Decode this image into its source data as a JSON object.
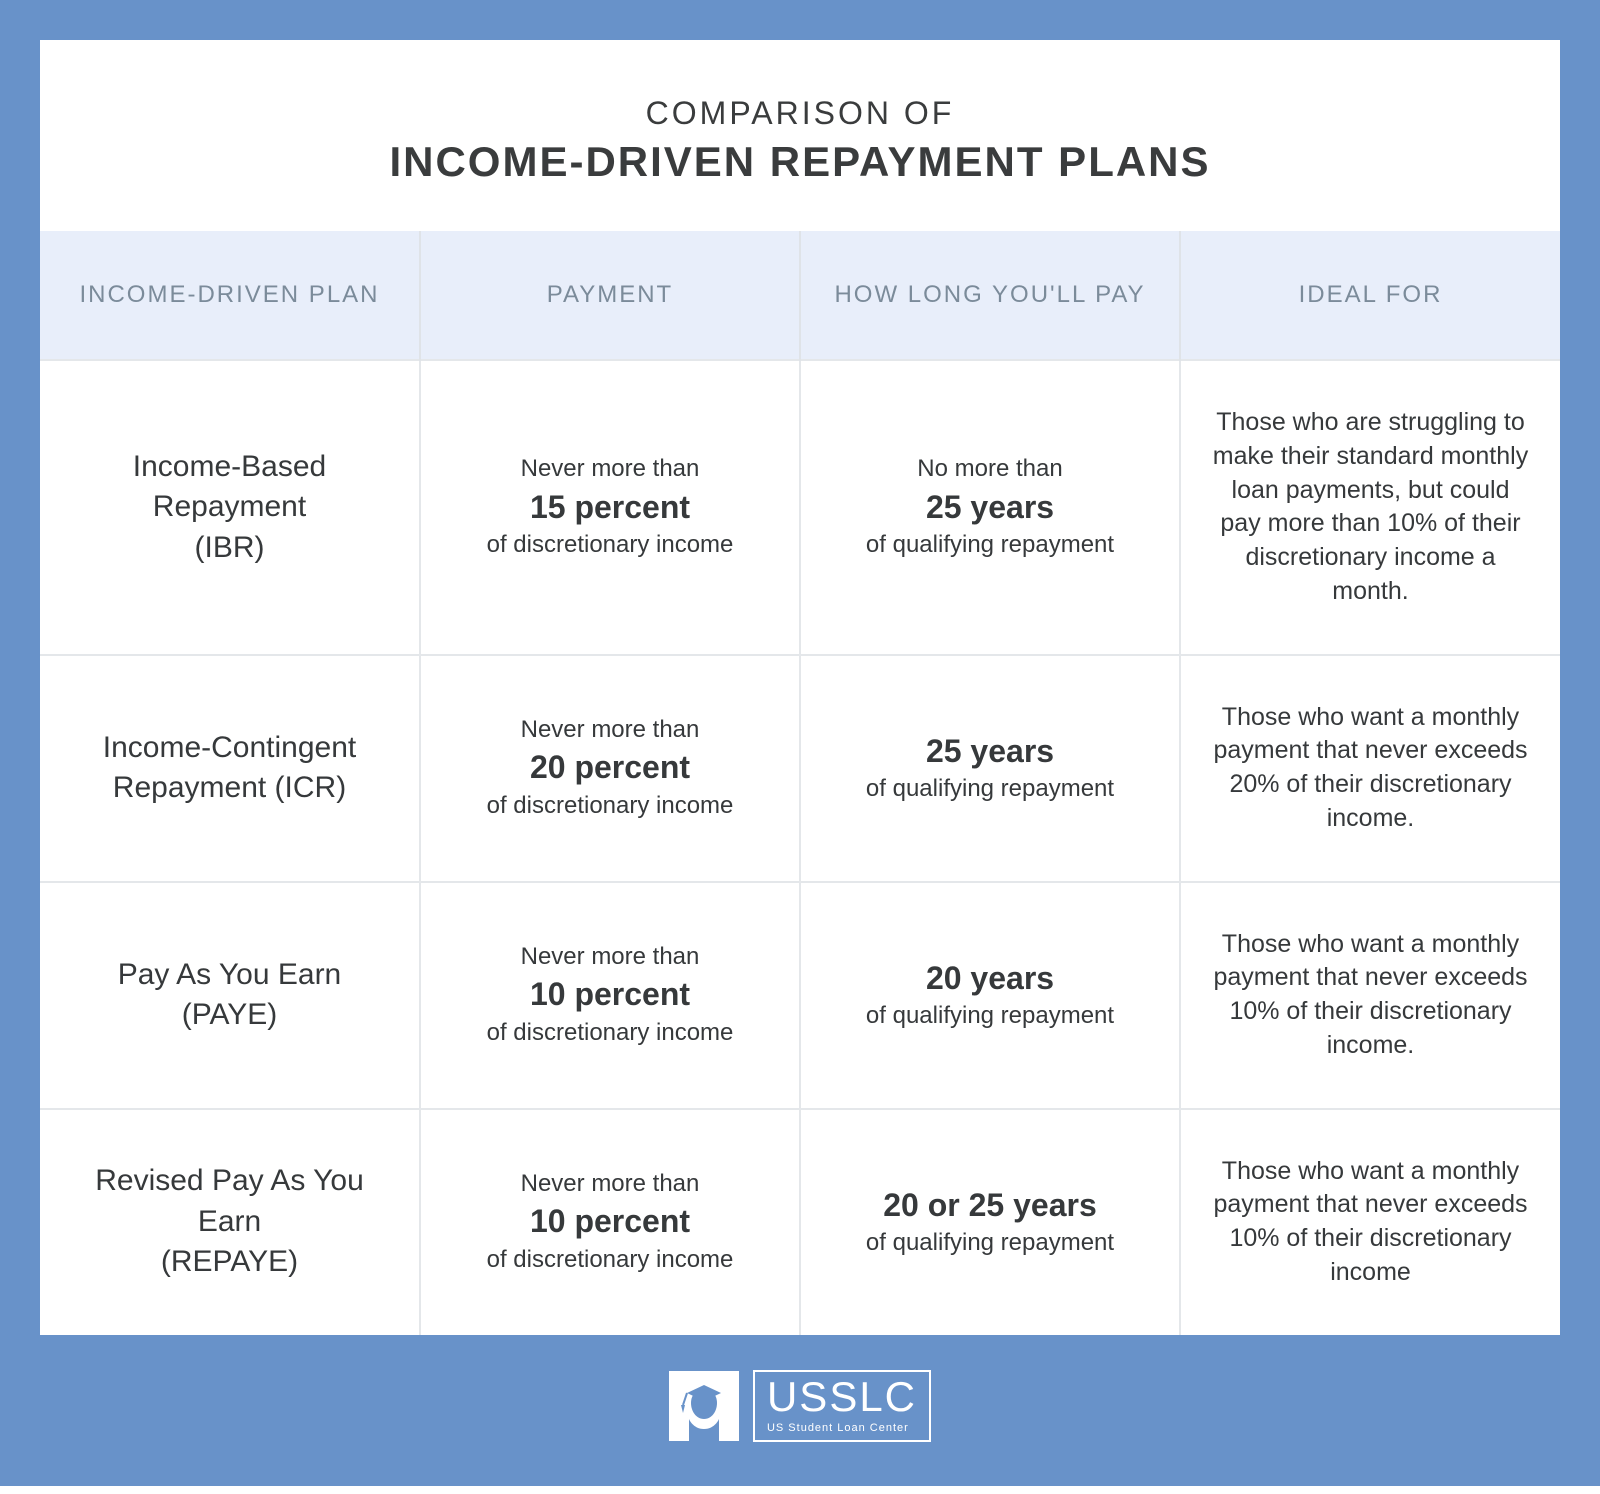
{
  "colors": {
    "outer_bg": "#6892c9",
    "card_bg": "#ffffff",
    "header_row_bg": "#e8eefa",
    "header_text": "#7b8b9a",
    "cell_text": "#36393b",
    "border": "#e4e7ea"
  },
  "typography": {
    "title_small_fs": 32,
    "title_big_fs": 42,
    "header_fs": 24,
    "plan_name_fs": 30,
    "bold_fs": 32,
    "body_fs": 25
  },
  "title": {
    "pre": "COMPARISON OF",
    "main": "INCOME-DRIVEN REPAYMENT PLANS"
  },
  "columns": [
    "INCOME-DRIVEN PLAN",
    "PAYMENT",
    "HOW LONG YOU'LL PAY",
    "IDEAL FOR"
  ],
  "rows": [
    {
      "plan_line1": "Income-Based Repayment",
      "plan_line2": "(IBR)",
      "pay_pre": "Never more than",
      "pay_bold": "15 percent",
      "pay_post": "of discretionary income",
      "dur_pre": "No more than",
      "dur_bold": "25 years",
      "dur_post": "of qualifying repayment",
      "ideal": "Those who are struggling to make their standard monthly loan payments, but could pay more than 10% of their discretionary income a month."
    },
    {
      "plan_line1": "Income-Contingent",
      "plan_line2": "Repayment  (ICR)",
      "pay_pre": "Never more than",
      "pay_bold": "20 percent",
      "pay_post": "of discretionary income",
      "dur_pre": "",
      "dur_bold": "25 years",
      "dur_post": "of qualifying repayment",
      "ideal": "Those who want a monthly payment that never exceeds 20% of their discretionary income."
    },
    {
      "plan_line1": "Pay As You Earn",
      "plan_line2": "(PAYE)",
      "pay_pre": "Never more than",
      "pay_bold": "10 percent",
      "pay_post": "of discretionary income",
      "dur_pre": "",
      "dur_bold": "20 years",
      "dur_post": "of qualifying repayment",
      "ideal": "Those who want a monthly payment that never exceeds 10% of their discretionary income."
    },
    {
      "plan_line1": "Revised Pay As You Earn",
      "plan_line2": "(REPAYE)",
      "pay_pre": "Never more than",
      "pay_bold": "10 percent",
      "pay_post": "of discretionary income",
      "dur_pre": "",
      "dur_bold": "20 or 25 years",
      "dur_post": "of qualifying repayment",
      "ideal": "Those who want a monthly payment that never exceeds 10% of their discretionary income"
    }
  ],
  "logo": {
    "main": "USSLC",
    "sub": "US Student Loan Center"
  }
}
